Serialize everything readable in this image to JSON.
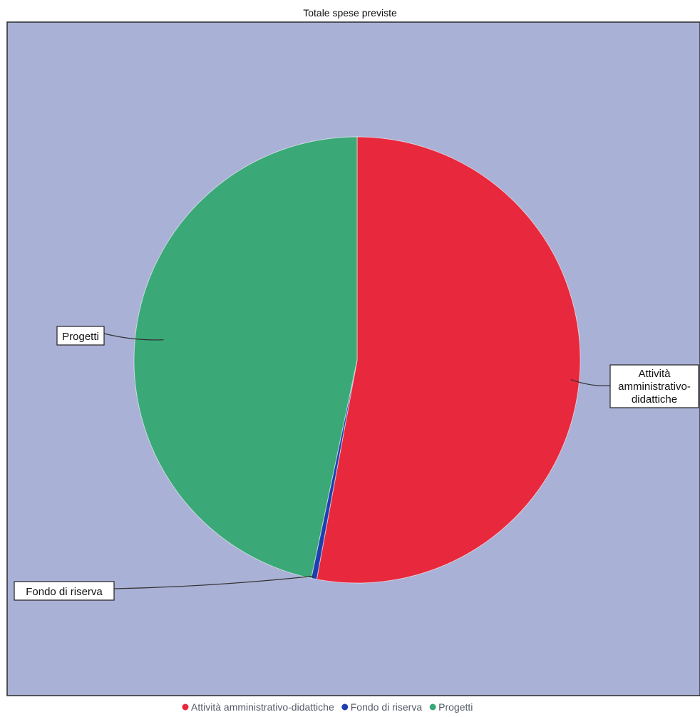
{
  "chart_data": {
    "type": "pie",
    "title": "Totale spese previste",
    "series": [
      {
        "name": "Totale spese previste",
        "values": [
          52.9,
          0.4,
          46.7
        ]
      }
    ],
    "categories": [
      "Attività amministrativo-didattiche",
      "Fondo di riserva",
      "Progetti"
    ],
    "slices": [
      {
        "label": "Attività amministrativo-didattiche",
        "callout_lines": [
          "Attività",
          "amministrativo-",
          "didattiche"
        ],
        "value": 52.9,
        "color": "#e8283c"
      },
      {
        "label": "Fondo di riserva",
        "callout_lines": [
          "Fondo di riserva"
        ],
        "value": 0.4,
        "color": "#1f3fb0"
      },
      {
        "label": "Progetti",
        "callout_lines": [
          "Progetti"
        ],
        "value": 46.7,
        "color": "#3aa877"
      }
    ],
    "legend": {
      "placement": "bottom",
      "entries": [
        "Attività amministrativo-didattiche",
        "Fondo di riserva",
        "Progetti"
      ]
    },
    "plot_background": "#a9b1d6",
    "grid": false
  }
}
